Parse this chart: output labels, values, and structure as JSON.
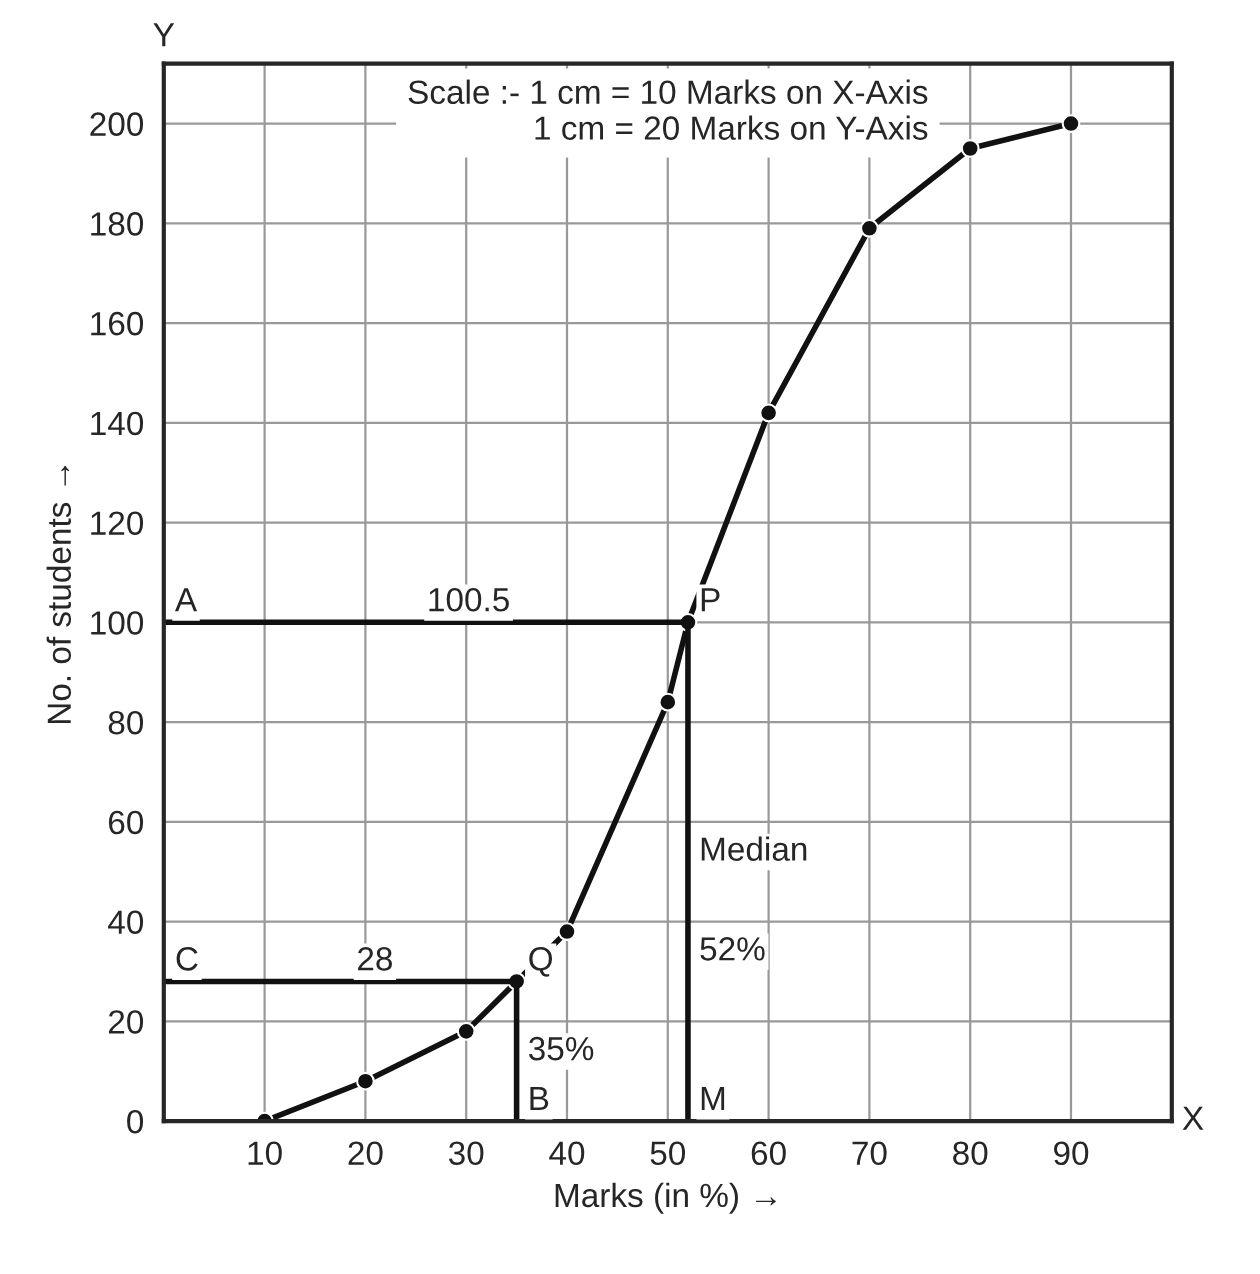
{
  "chart_data": {
    "type": "line",
    "xlabel": "Marks (in %) →",
    "ylabel": "No. of students →",
    "series": [
      {
        "color": "#111111",
        "marker": "circle",
        "x": [
          10,
          20,
          30,
          35,
          40,
          50,
          52,
          60,
          70,
          80,
          90
        ],
        "values": [
          0,
          8,
          18,
          28,
          38,
          84,
          100,
          142,
          179,
          195,
          200
        ]
      },
      {
        "color": "#111111",
        "x": [
          0,
          52
        ],
        "values": [
          100,
          100
        ]
      },
      {
        "color": "#111111",
        "x": [
          52,
          52
        ],
        "values": [
          100,
          0
        ]
      },
      {
        "color": "#111111",
        "x": [
          0,
          35
        ],
        "values": [
          28,
          28
        ]
      },
      {
        "color": "#111111",
        "x": [
          35,
          35
        ],
        "values": [
          28,
          0
        ]
      }
    ],
    "xlim": [
      0,
      100
    ],
    "ylim": [
      0,
      212
    ],
    "xticks": [
      {
        "value": 0,
        "label": null
      },
      10,
      20,
      30,
      40,
      50,
      60,
      70,
      80,
      90
    ],
    "yticks": [
      0,
      20,
      40,
      60,
      80,
      100,
      120,
      140,
      160,
      180,
      200
    ],
    "grid": true,
    "annotations": [
      "Scale :- 1 cm = 10 Marks on X-Axis\n1 cm = 20 Marks on Y-Axis",
      {
        "text": "A",
        "x": 0,
        "y": 100
      },
      {
        "text": "100.5",
        "x": 25,
        "y": 100
      },
      {
        "text": "P",
        "x": 52,
        "y": 100
      },
      {
        "text": "C",
        "x": 0,
        "y": 28
      },
      {
        "text": "28",
        "x": 18,
        "y": 28
      },
      {
        "text": "Q",
        "x": 35,
        "y": 28
      },
      {
        "text": "B",
        "x": 35,
        "y": 0
      },
      {
        "text": "M",
        "x": 52,
        "y": 0
      },
      {
        "text": "35%",
        "x": 35,
        "y": 10
      },
      {
        "text": "52%",
        "x": 52,
        "y": 30
      },
      {
        "text": "Median",
        "x": 52,
        "y": 50
      },
      "Y",
      "X"
    ]
  }
}
